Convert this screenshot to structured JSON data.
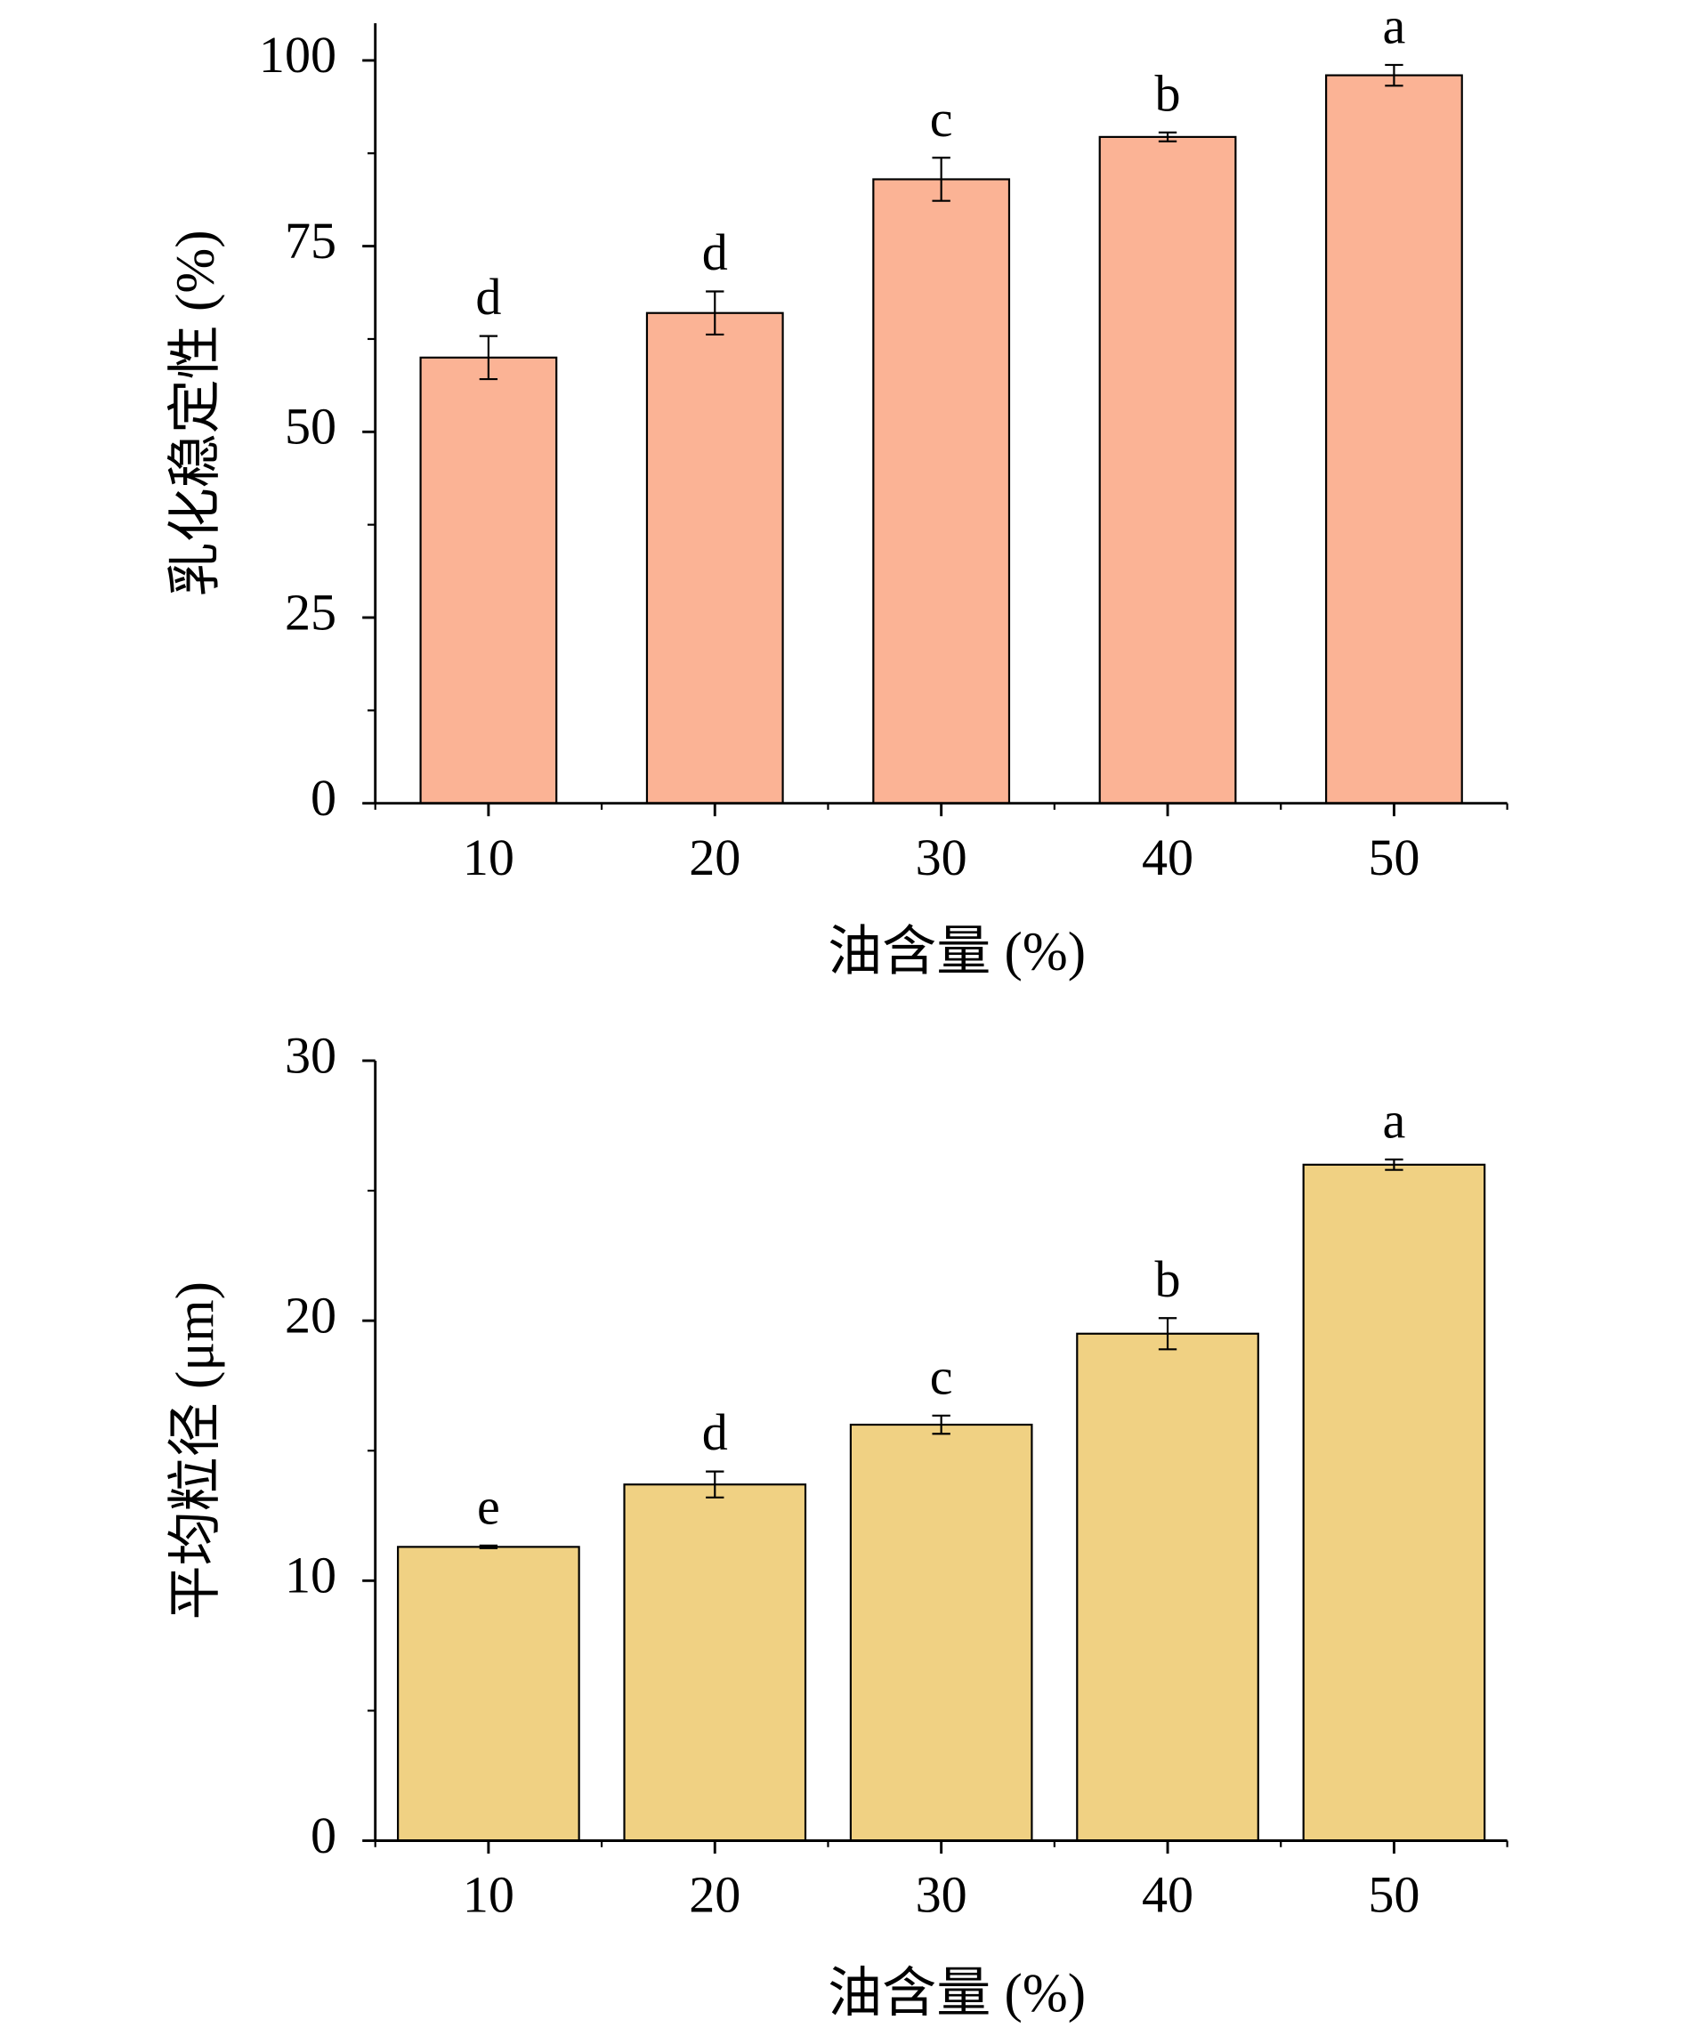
{
  "chart_data": [
    {
      "type": "bar",
      "x_label": "油含量 (%)",
      "y_label": "乳化稳定性 (%)",
      "categories": [
        "10",
        "20",
        "30",
        "40",
        "50"
      ],
      "values": [
        60,
        66,
        84,
        89.7,
        98
      ],
      "errors": [
        2.9,
        2.9,
        2.9,
        0.6,
        1.4
      ],
      "annotations": [
        "d",
        "d",
        "c",
        "b",
        "a"
      ],
      "color": "#fbb395",
      "ylim": [
        0,
        105
      ],
      "yticks": [
        0,
        25,
        50,
        75,
        100
      ]
    },
    {
      "type": "bar",
      "x_label": "油含量 (%)",
      "y_label": "平均粒径 (μm)",
      "categories": [
        "10",
        "20",
        "30",
        "40",
        "50"
      ],
      "values": [
        11.3,
        13.7,
        16,
        19.5,
        26
      ],
      "errors": [
        0.05,
        0.5,
        0.35,
        0.6,
        0.2
      ],
      "annotations": [
        "e",
        "d",
        "c",
        "b",
        "a"
      ],
      "color": "#f0d183",
      "ylim": [
        0,
        30
      ],
      "yticks": [
        0,
        10,
        20,
        30
      ]
    }
  ]
}
